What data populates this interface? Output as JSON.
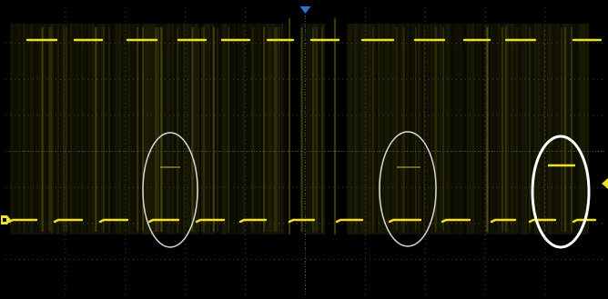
{
  "display": {
    "background_color": "#000000",
    "grid_color": "#4a4a4a",
    "trace_color": "#f0e020",
    "noise_color": "#6a6a12",
    "annotation_color": "#d8d8d8",
    "annotation_highlight_color": "#ffffff",
    "trigger_marker_color": "#2f6fd6",
    "trigger_position_icon": "trigger-position-marker-icon",
    "trigger_level_icon": "trigger-level-marker-icon",
    "channel_marker_icon": "channel-1-ground-marker-icon",
    "grid": {
      "horizontal_divisions": 8,
      "vertical_divisions": 10,
      "visible": true
    }
  },
  "annotations": [
    {
      "name": "faint-runt-ellipse-1",
      "style": "dim"
    },
    {
      "name": "faint-runt-ellipse-2",
      "style": "dim"
    },
    {
      "name": "captured-runt-ellipse",
      "style": "highlight"
    }
  ]
}
